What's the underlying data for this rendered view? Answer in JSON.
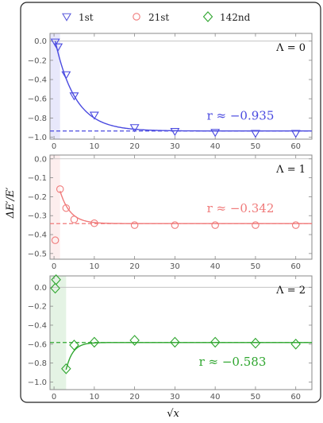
{
  "chart_data": {
    "type": "scatter",
    "xlabel": "√x",
    "ylabel": "ΔE′/E′",
    "legend": {
      "placement": "top",
      "entries": [
        {
          "label": "1st",
          "marker": "triangle-down",
          "color": "#5b5bdc"
        },
        {
          "label": "21st",
          "marker": "circle",
          "color": "#f07a7a"
        },
        {
          "label": "142nd",
          "marker": "diamond",
          "color": "#2fa62f"
        }
      ]
    },
    "panels": [
      {
        "label": "Λ = 0",
        "annotation": "r ≈ −0.935",
        "color": "#4a4ae0",
        "marker": "triangle-down",
        "xlim": [
          -1,
          64
        ],
        "ylim": [
          -1.02,
          0.08
        ],
        "yticks": [
          0.0,
          -0.2,
          -0.4,
          -0.6,
          -0.8,
          -1.0
        ],
        "ytick_labels": [
          "0.0",
          "−0.2",
          "−0.4",
          "−0.6",
          "−0.8",
          "−1.0"
        ],
        "xticks": [
          0,
          10,
          20,
          30,
          40,
          50,
          60
        ],
        "xtick_labels": [
          "0",
          "10",
          "20",
          "30",
          "40",
          "50",
          "60"
        ],
        "shade_x": [
          -1,
          1.5
        ],
        "asymptote": -0.935,
        "fit": {
          "decay": 0.2,
          "start_x": 0.3,
          "start_y": 0.0
        },
        "points": [
          {
            "x": 0.3,
            "y": -0.01
          },
          {
            "x": 1,
            "y": -0.06
          },
          {
            "x": 3,
            "y": -0.35
          },
          {
            "x": 5,
            "y": -0.57
          },
          {
            "x": 10,
            "y": -0.77
          },
          {
            "x": 20,
            "y": -0.9
          },
          {
            "x": 30,
            "y": -0.94
          },
          {
            "x": 40,
            "y": -0.95
          },
          {
            "x": 50,
            "y": -0.96
          },
          {
            "x": 60,
            "y": -0.96
          }
        ]
      },
      {
        "label": "Λ = 1",
        "annotation": "r ≈ −0.342",
        "color": "#f07a7a",
        "marker": "circle",
        "xlim": [
          -1,
          64
        ],
        "ylim": [
          -0.53,
          0.02
        ],
        "yticks": [
          0.0,
          -0.1,
          -0.2,
          -0.3,
          -0.4,
          -0.5
        ],
        "ytick_labels": [
          "0.0",
          "−0.1",
          "−0.2",
          "−0.3",
          "−0.4",
          "−0.5"
        ],
        "xticks": [
          0,
          10,
          20,
          30,
          40,
          50,
          60
        ],
        "xtick_labels": [
          "0",
          "10",
          "20",
          "30",
          "40",
          "50",
          "60"
        ],
        "shade_x": [
          -1,
          1.5
        ],
        "asymptote": -0.342,
        "fit": {
          "decay": 0.4,
          "start_x": 1.5,
          "start_y": -0.17
        },
        "points": [
          {
            "x": 0.3,
            "y": -0.43
          },
          {
            "x": 1.5,
            "y": -0.16
          },
          {
            "x": 3,
            "y": -0.26
          },
          {
            "x": 5,
            "y": -0.32
          },
          {
            "x": 10,
            "y": -0.34
          },
          {
            "x": 20,
            "y": -0.35
          },
          {
            "x": 30,
            "y": -0.35
          },
          {
            "x": 40,
            "y": -0.35
          },
          {
            "x": 50,
            "y": -0.35
          },
          {
            "x": 60,
            "y": -0.35
          }
        ]
      },
      {
        "label": "Λ = 2",
        "annotation": "r ≈ −0.583",
        "color": "#2fa62f",
        "marker": "diamond",
        "xlim": [
          -1,
          64
        ],
        "ylim": [
          -1.08,
          0.12
        ],
        "yticks": [
          0.0,
          -0.2,
          -0.4,
          -0.6,
          -0.8,
          -1.0
        ],
        "ytick_labels": [
          "0.0",
          "−0.2",
          "−0.4",
          "−0.6",
          "−0.8",
          "−1.0"
        ],
        "xticks": [
          0,
          10,
          20,
          30,
          40,
          50,
          60
        ],
        "xtick_labels": [
          "0",
          "10",
          "20",
          "30",
          "40",
          "50",
          "60"
        ],
        "shade_x": [
          -1,
          3
        ],
        "asymptote": -0.583,
        "fit": {
          "decay": 0.6,
          "start_x": 3,
          "start_y": -0.87
        },
        "points": [
          {
            "x": 0.5,
            "y": 0.08
          },
          {
            "x": 0.3,
            "y": -0.01
          },
          {
            "x": 3,
            "y": -0.86
          },
          {
            "x": 5,
            "y": -0.61
          },
          {
            "x": 10,
            "y": -0.58
          },
          {
            "x": 20,
            "y": -0.56
          },
          {
            "x": 30,
            "y": -0.58
          },
          {
            "x": 40,
            "y": -0.58
          },
          {
            "x": 50,
            "y": -0.59
          },
          {
            "x": 60,
            "y": -0.6
          }
        ]
      }
    ]
  }
}
